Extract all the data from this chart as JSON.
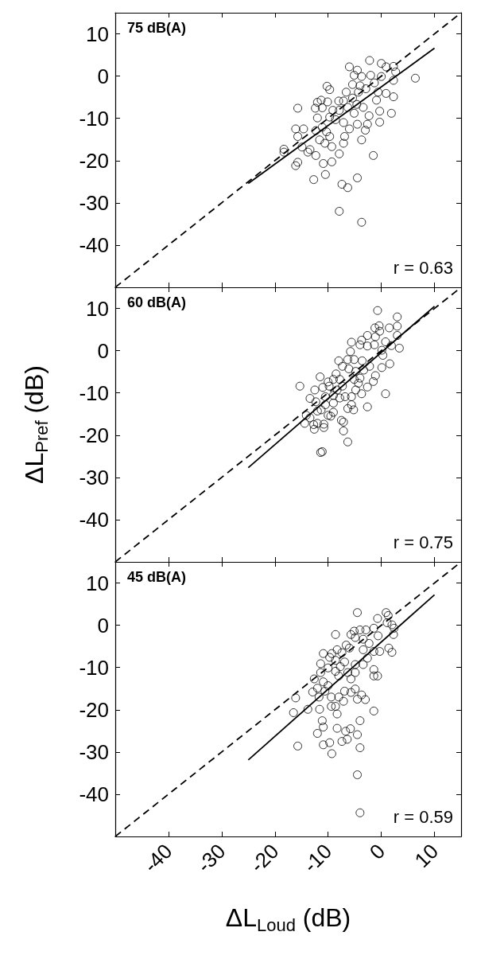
{
  "chart_data": [
    {
      "type": "scatter",
      "annotations": [
        "75 dB(A)",
        "r = 0.63"
      ],
      "xlim": [
        -50,
        15
      ],
      "ylim": [
        -50,
        15
      ],
      "xticks": [
        -40,
        -30,
        -20,
        -10,
        0,
        10
      ],
      "yticks": [
        -40,
        -30,
        -20,
        -10,
        0,
        10
      ],
      "tick_labels": "y",
      "grid": false,
      "series": [
        {
          "marker": "circle",
          "color": "#000000",
          "x": [
            6.4,
            -2.2,
            -6,
            -4.5,
            0,
            0.9,
            2.3,
            2.7,
            2.3,
            2.3,
            1.9,
            -0.3,
            -0.3,
            -1.5,
            -3.7,
            -4.5,
            -3,
            -2.6,
            -2.3,
            0.9,
            -0.9,
            -0.6,
            -1.3,
            -2,
            0,
            -3.7,
            -5.1,
            -5.4,
            -4,
            -2.9,
            -4.3,
            -6.6,
            -7.1,
            -5.4,
            -4.6,
            -3.4,
            -5.1,
            -6.3,
            -8,
            -7.9,
            -9.1,
            -9.7,
            -8.6,
            -7.1,
            -6,
            -6.9,
            -7.1,
            -7.9,
            -9.3,
            -10.9,
            -10.5,
            -12.7,
            -7.4,
            -6.3,
            -4.5,
            -7.9,
            -3.7,
            -10.2,
            -9.7,
            -10.1,
            -11.3,
            -12,
            -11.1,
            -12.4,
            -15.7,
            -12,
            -11.1,
            -12.3,
            -10.3,
            -9.7,
            -11.6,
            -10.6,
            -9.3,
            -16.1,
            -14.6,
            -15.7,
            -18.3,
            -18.3,
            -14.9,
            -13.8,
            -13.4,
            -12.3,
            -15.7,
            -16.1
          ],
          "values": [
            -0.5,
            3.7,
            2.2,
            1.4,
            3,
            2.2,
            2.3,
            1,
            -1,
            -4.9,
            -8.8,
            -8.3,
            -10.9,
            -18.8,
            -15.1,
            -11.4,
            -12.8,
            -11.4,
            -9.4,
            -4.1,
            -5.7,
            -3.8,
            -1.6,
            0.2,
            -0.1,
            -0.1,
            0.2,
            -2,
            -2.3,
            -3,
            -3.8,
            -3.8,
            -5.9,
            -5.2,
            -6.7,
            -7.4,
            -8.8,
            -7.4,
            -5.9,
            -8.1,
            -8.1,
            -9.7,
            -10.3,
            -11,
            -12.5,
            -14.3,
            -15.9,
            -18.4,
            -20.3,
            -20.7,
            -23.3,
            -24.5,
            -25.6,
            -26.4,
            -24.1,
            -32,
            -34.6,
            -2.4,
            -3.2,
            -6.1,
            -5.7,
            -6.2,
            -7.5,
            -7.6,
            -7.6,
            -9.9,
            -12.1,
            -12.9,
            -13.2,
            -14.3,
            -15.1,
            -15.9,
            -16.7,
            -12.5,
            -12.5,
            -14.3,
            -17.3,
            -18,
            -16.8,
            -18,
            -17.4,
            -18.8,
            -20.4,
            -21.2
          ]
        },
        {
          "type": "line",
          "color": "#000000",
          "line_style": "solid",
          "x": [
            -25,
            10
          ],
          "values": [
            -25.4,
            6.6
          ]
        },
        {
          "type": "line",
          "color": "#000000",
          "line_style": "dashed",
          "x": [
            -50,
            15
          ],
          "values": [
            -50,
            15
          ]
        }
      ]
    },
    {
      "type": "scatter",
      "ylabel": "ΔL$_{Pref}$ (dB)",
      "annotations": [
        "60 dB(A)",
        "r = 0.75"
      ],
      "xlim": [
        -50,
        15
      ],
      "ylim": [
        -50,
        15
      ],
      "xticks": [
        -40,
        -30,
        -20,
        -10,
        0,
        10
      ],
      "yticks": [
        -40,
        -30,
        -20,
        -10,
        0,
        10
      ],
      "tick_labels": "y",
      "grid": false,
      "series": [
        {
          "marker": "circle",
          "color": "#000000",
          "x": [
            -0.7,
            3.0,
            3.0,
            1.5,
            -0.4,
            -1.2,
            -0.3,
            3.0,
            3.4,
            1.9,
            0.8,
            -1.1,
            -2.6,
            -3.7,
            -5.6,
            -4.0,
            -2.6,
            -1.3,
            0.1,
            0.3,
            1.6,
            0.1,
            -1.1,
            -1.5,
            0.8,
            -2.6,
            -2.6,
            -3.7,
            -4.0,
            -3.3,
            -2.2,
            -3.6,
            -5.1,
            -5.8,
            -6.3,
            -8.0,
            -7.3,
            -6.1,
            -4.8,
            -5.1,
            -4.3,
            -4.8,
            -5.6,
            -5.6,
            -5.2,
            -6.3,
            -7.1,
            -7.5,
            -7.1,
            -6.3,
            -11.4,
            -11.1,
            -9.0,
            -8.5,
            -7.8,
            -7.3,
            -8.3,
            -7.8,
            -9.0,
            -9.8,
            -10.0,
            -11.5,
            -11.0,
            -12.5,
            -15.3,
            -13.4,
            -12.3,
            -10.5,
            -11.3,
            -10.0,
            -9.5,
            -14.1,
            -13.4,
            -14.4,
            -12.7,
            -12.0,
            -10.8,
            -10.8,
            -12.6,
            -12.0,
            -9.0,
            -10.5,
            -9.0,
            -6.8
          ],
          "values": [
            9.5,
            8.0,
            5.8,
            5.4,
            5.9,
            5.4,
            4.6,
            3.6,
            0.6,
            1.2,
            2.1,
            3.3,
            3.6,
            2.5,
            2.0,
            1.4,
            1.1,
            1.4,
            0.1,
            -1.1,
            -3.1,
            -4.0,
            -5.9,
            -7.3,
            -10.2,
            -13.3,
            -8.6,
            -10.2,
            -6.5,
            -4.6,
            -3.7,
            -2.4,
            -2.1,
            -0.2,
            -2.1,
            -2.4,
            -3.7,
            -4.3,
            -4.9,
            -6.8,
            -7.7,
            -9.3,
            -10.9,
            -12.8,
            -14.0,
            -13.7,
            -16.9,
            -16.5,
            -19.0,
            -21.6,
            -24.1,
            -23.9,
            -6.8,
            -5.5,
            -6.8,
            -8.4,
            -9.3,
            -11.2,
            -12.4,
            -8.4,
            -7.4,
            -6.2,
            -8.7,
            -9.3,
            -8.4,
            -11.3,
            -12.1,
            -12.8,
            -14.0,
            -15.3,
            -15.5,
            -15.3,
            -15.9,
            -17.2,
            -17.5,
            -17.2,
            -17.4,
            -18.2,
            -18.6,
            -14.3,
            -14.6,
            -10.9,
            -10.6,
            -10.9
          ]
        },
        {
          "type": "line",
          "color": "#000000",
          "line_style": "solid",
          "x": [
            -25,
            10
          ],
          "values": [
            -27.7,
            10.5
          ]
        },
        {
          "type": "line",
          "color": "#000000",
          "line_style": "dashed",
          "x": [
            -50,
            15
          ],
          "values": [
            -50,
            15
          ]
        }
      ]
    },
    {
      "type": "scatter",
      "xlabel": "ΔL$_{Loud}$ (dB)",
      "annotations": [
        "45 dB(A)",
        "r = 0.59"
      ],
      "xlim": [
        -50,
        15
      ],
      "ylim": [
        -50,
        15
      ],
      "xticks": [
        -40,
        -30,
        -20,
        -10,
        0,
        10
      ],
      "yticks": [
        -40,
        -30,
        -20,
        -10,
        0,
        10
      ],
      "grid": false,
      "series": [
        {
          "marker": "circle",
          "color": "#000000",
          "x": [
            -4.5,
            0.9,
            1.3,
            -0.7,
            1.1,
            2.0,
            2.4,
            2.3,
            2.0,
            1.4,
            -0.3,
            -1.4,
            -0.6,
            -1.4,
            -2.9,
            -4.0,
            -5.1,
            -5.7,
            -8.6,
            -4.9,
            -3.4,
            -2.3,
            -3.4,
            -2.6,
            -3.4,
            -4.9,
            -6.0,
            -6.6,
            -7.4,
            -8.3,
            -9.3,
            -10.9,
            -9.7,
            -8.6,
            -6.9,
            -7.7,
            -11.4,
            -10.0,
            -8.6,
            -8.0,
            -6.3,
            -4.9,
            -5.7,
            -1.4,
            -1.4,
            -0.7,
            -11.4,
            -12.6,
            -10.9,
            -10.0,
            -12.0,
            -12.9,
            -10.6,
            -11.7,
            -9.4,
            -8.0,
            -7.1,
            -6.9,
            -5.7,
            -4.9,
            -4.5,
            -3.7,
            -3.0,
            -1.4,
            -16.1,
            -16.5,
            -13.8,
            -11.6,
            -9.4,
            -8.6,
            -8.3,
            -11.1,
            -10.9,
            -12.0,
            -10.9,
            -9.7,
            -9.3,
            -8.3,
            -6.7,
            -5.8,
            -7.4,
            -6.4,
            -4.5,
            -4.0,
            -4.0,
            -15.7,
            -4.5,
            -4.0
          ],
          "values": [
            3.0,
            3.0,
            2.3,
            1.6,
            0.6,
            0.1,
            -0.7,
            -2.2,
            -6.4,
            -5.4,
            -6.2,
            -6.2,
            -2.5,
            -0.7,
            -1.1,
            -1.1,
            -1.4,
            -2.2,
            -2.2,
            -2.9,
            -3.3,
            -4.3,
            -5.8,
            -7.8,
            -9.3,
            -9.3,
            -5.4,
            -4.7,
            -6.5,
            -5.8,
            -6.7,
            -6.7,
            -7.6,
            -8.3,
            -8.7,
            -9.8,
            -9.1,
            -10.1,
            -10.9,
            -12.0,
            -11.2,
            -11.2,
            -12.7,
            -10.5,
            -12.0,
            -12.0,
            -11.2,
            -12.7,
            -13.4,
            -14.3,
            -14.9,
            -15.8,
            -15.6,
            -17.0,
            -17.0,
            -17.0,
            -18.0,
            -15.6,
            -15.9,
            -15.1,
            -17.5,
            -16.5,
            -17.6,
            -20.3,
            -17.2,
            -20.7,
            -19.9,
            -19.9,
            -19.2,
            -19.2,
            -21.0,
            -22.6,
            -24.1,
            -25.6,
            -28.3,
            -27.8,
            -30.4,
            -24.4,
            -25.1,
            -24.5,
            -27.5,
            -27.0,
            -25.9,
            -22.6,
            -29.0,
            -28.6,
            -35.4,
            -44.4
          ]
        },
        {
          "type": "line",
          "color": "#000000",
          "line_style": "solid",
          "x": [
            -25,
            10
          ],
          "values": [
            -31.9,
            7.2
          ]
        },
        {
          "type": "line",
          "color": "#000000",
          "line_style": "dashed",
          "x": [
            -50,
            15
          ],
          "values": [
            -50,
            15
          ]
        }
      ]
    }
  ]
}
